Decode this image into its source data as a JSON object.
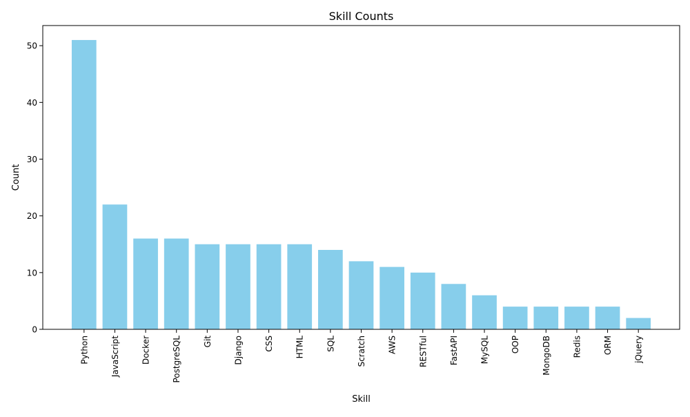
{
  "chart_data": {
    "type": "bar",
    "title": "Skill Counts",
    "xlabel": "Skill",
    "ylabel": "Count",
    "categories": [
      "Python",
      "JavaScript",
      "Docker",
      "PostgreSQL",
      "Git",
      "Django",
      "CSS",
      "HTML",
      "SQL",
      "Scratch",
      "AWS",
      "RESTful",
      "FastAPI",
      "MySQL",
      "OOP",
      "MongoDB",
      "Redis",
      "ORM",
      "jQuery"
    ],
    "values": [
      51,
      22,
      16,
      16,
      15,
      15,
      15,
      15,
      14,
      12,
      11,
      10,
      8,
      6,
      4,
      4,
      4,
      4,
      2
    ],
    "ylim": [
      0,
      53.55
    ],
    "yticks": [
      0,
      10,
      20,
      30,
      40,
      50
    ],
    "grid": false,
    "legend": "none",
    "bar_color": "#87ceeb"
  }
}
